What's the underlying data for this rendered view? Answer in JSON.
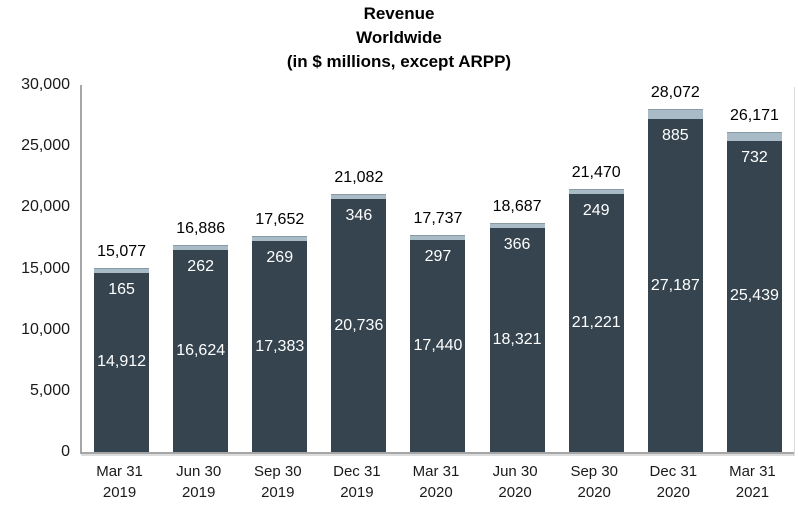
{
  "chart_data": {
    "type": "bar",
    "stacked": true,
    "title": "Revenue Worldwide (in $ millions, except ARPP)",
    "title_lines": [
      "Revenue",
      "Worldwide",
      "(in $ millions, except ARPP)"
    ],
    "categories": [
      {
        "line1": "Mar 31",
        "line2": "2019"
      },
      {
        "line1": "Jun 30",
        "line2": "2019"
      },
      {
        "line1": "Sep 30",
        "line2": "2019"
      },
      {
        "line1": "Dec 31",
        "line2": "2019"
      },
      {
        "line1": "Mar 31",
        "line2": "2020"
      },
      {
        "line1": "Jun 30",
        "line2": "2020"
      },
      {
        "line1": "Sep 30",
        "line2": "2020"
      },
      {
        "line1": "Dec 31",
        "line2": "2020"
      },
      {
        "line1": "Mar 31",
        "line2": "2021"
      }
    ],
    "series": [
      {
        "name": "main-revenue-segment",
        "color": "#35444e",
        "values": [
          14912,
          16624,
          17383,
          20736,
          17440,
          18321,
          21221,
          27187,
          25439
        ]
      },
      {
        "name": "top-revenue-segment",
        "color": "#a9bbc7",
        "values": [
          165,
          262,
          269,
          346,
          297,
          366,
          249,
          885,
          732
        ]
      }
    ],
    "totals": [
      15077,
      16886,
      17652,
      21082,
      17737,
      18687,
      21470,
      28072,
      26171
    ],
    "ylim": [
      0,
      30000
    ],
    "yticks": [
      0,
      5000,
      10000,
      15000,
      20000,
      25000,
      30000
    ],
    "grid": false,
    "legend": false
  },
  "colors": {
    "bar_dark": "#35444e",
    "bar_light": "#a9bbc7",
    "axis": "#a6a6a6",
    "inside_label": "#ffffff",
    "text": "#000000"
  }
}
